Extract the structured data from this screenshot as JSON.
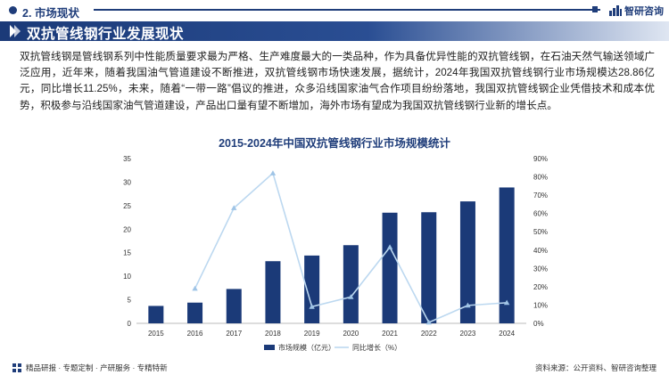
{
  "header": {
    "section_label": "2. 市场现状",
    "brand_name": "智研咨询",
    "title": "双抗管线钢行业发展现状"
  },
  "intro": "双抗管线钢是管线钢系列中性能质量要求最为严格、生产难度最大的一类品种，作为具备优异性能的双抗管线钢，在石油天然气输送领域广泛应用，近年来，随着我国油气管道建设不断推进，双抗管线钢市场快速发展，据统计，2024年我国双抗管线钢行业市场规模达28.86亿元，同比增长11.25%，未来，随着“一带一路”倡议的推进，众多沿线国家油气合作项目纷纷落地，我国双抗管线钢企业凭借技术和成本优势，积极参与沿线国家油气管道建设，产品出口量有望不断增加，海外市场有望成为我国双抗管线钢行业新的增长点。",
  "footer": {
    "left": "精品研报 · 专题定制 · 产研服务 · 专精特新",
    "right": "资料来源：公开资料、智研咨询整理"
  },
  "colors": {
    "primary": "#1f3d7a",
    "bar": "#1b3a78",
    "line": "#bcd8f0",
    "marker": "#9fc4e6"
  },
  "chart_data": {
    "type": "bar",
    "title": "2015-2024年中国双抗管线钢行业市场规模统计",
    "categories": [
      "2015",
      "2016",
      "2017",
      "2018",
      "2019",
      "2020",
      "2021",
      "2022",
      "2023",
      "2024"
    ],
    "y_ticks": [
      "35",
      "30",
      "25",
      "20",
      "15",
      "10",
      "5",
      "0"
    ],
    "y2_ticks": [
      "90%",
      "80%",
      "70%",
      "60%",
      "50%",
      "40%",
      "30%",
      "20%",
      "10%",
      "0%"
    ],
    "ylim": [
      0,
      35
    ],
    "y2lim": [
      0,
      90
    ],
    "grid": false,
    "legend_position": "bottom",
    "series": [
      {
        "name": "市场规模（亿元）",
        "type": "bar",
        "axis": "left",
        "values": [
          3.7,
          4.4,
          7.3,
          13.2,
          14.4,
          16.6,
          23.5,
          23.6,
          25.9,
          28.86
        ]
      },
      {
        "name": "同比增长（%）",
        "type": "line",
        "axis": "right",
        "values": [
          null,
          19.0,
          63.0,
          82.0,
          9.1,
          14.4,
          41.6,
          0.5,
          9.8,
          11.25
        ]
      }
    ]
  }
}
